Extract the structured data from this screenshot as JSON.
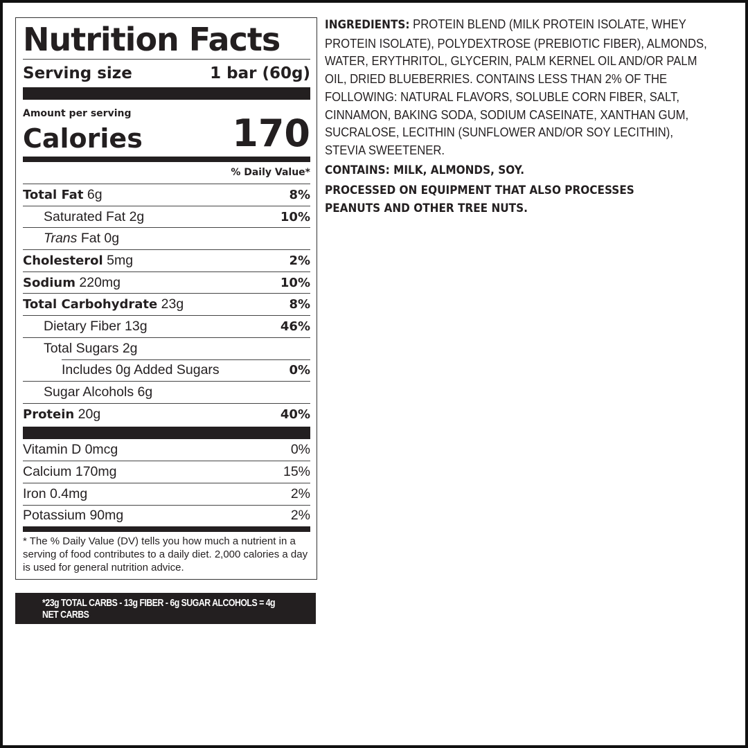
{
  "label": {
    "title": "Nutrition Facts",
    "serving_label": "Serving size",
    "serving_value": "1 bar (60g)",
    "amount_per_serving": "Amount per serving",
    "calories_label": "Calories",
    "calories_value": "170",
    "daily_value_header": "% Daily Value*",
    "nutrients": [
      {
        "name": "Total Fat",
        "amount": "6g",
        "dv": "8%"
      },
      {
        "name": "Saturated Fat",
        "amount": "2g",
        "dv": "10%"
      },
      {
        "name": "Trans",
        "suffix": "Fat 0g",
        "dv": ""
      },
      {
        "name": "Cholesterol",
        "amount": "5mg",
        "dv": "2%"
      },
      {
        "name": "Sodium",
        "amount": "220mg",
        "dv": "10%"
      },
      {
        "name": "Total Carbohydrate",
        "amount": "23g",
        "dv": "8%"
      },
      {
        "name": "Dietary Fiber",
        "amount": "13g",
        "dv": "46%"
      },
      {
        "name": "Total Sugars",
        "amount": "2g",
        "dv": ""
      },
      {
        "name": "Includes 0g Added Sugars",
        "dv": "0%"
      },
      {
        "name": "Sugar Alcohols",
        "amount": "6g",
        "dv": ""
      },
      {
        "name": "Protein",
        "amount": "20g",
        "dv": "40%"
      }
    ],
    "vitamins": [
      {
        "text": "Vitamin D 0mcg",
        "dv": "0%"
      },
      {
        "text": "Calcium 170mg",
        "dv": "15%"
      },
      {
        "text": "Iron 0.4mg",
        "dv": "2%"
      },
      {
        "text": "Potassium 90mg",
        "dv": "2%"
      }
    ],
    "footnote": "* The % Daily Value (DV) tells you how much a nutrient in a serving of food contributes to a daily diet. 2,000 calories a day is used for general nutrition advice."
  },
  "net_carbs": "*23g TOTAL CARBS - 13g FIBER - 6g SUGAR ALCOHOLS = 4g NET CARBS",
  "ingredients": {
    "label": "INGREDIENTS:",
    "text": "PROTEIN BLEND (MILK PROTEIN ISOLATE, WHEY PROTEIN ISOLATE), POLYDEXTROSE (PREBIOTIC FIBER), ALMONDS, WATER, ERYTHRITOL, GLYCERIN, PALM KERNEL OIL AND/OR PALM OIL, DRIED BLUEBERRIES. CONTAINS LESS THAN 2% OF THE FOLLOWING: NATURAL FLAVORS, SOLUBLE CORN FIBER, SALT, CINNAMON, BAKING SODA, SODIUM CASEINATE, XANTHAN GUM, SUCRALOSE, LECITHIN (SUNFLOWER AND/OR SOY LECITHIN), STEVIA SWEETENER.",
    "contains": "CONTAINS: MILK, ALMONDS, SOY.",
    "processed": "PROCESSED ON EQUIPMENT THAT ALSO PROCESSES PEANUTS AND OTHER TREE NUTS."
  }
}
